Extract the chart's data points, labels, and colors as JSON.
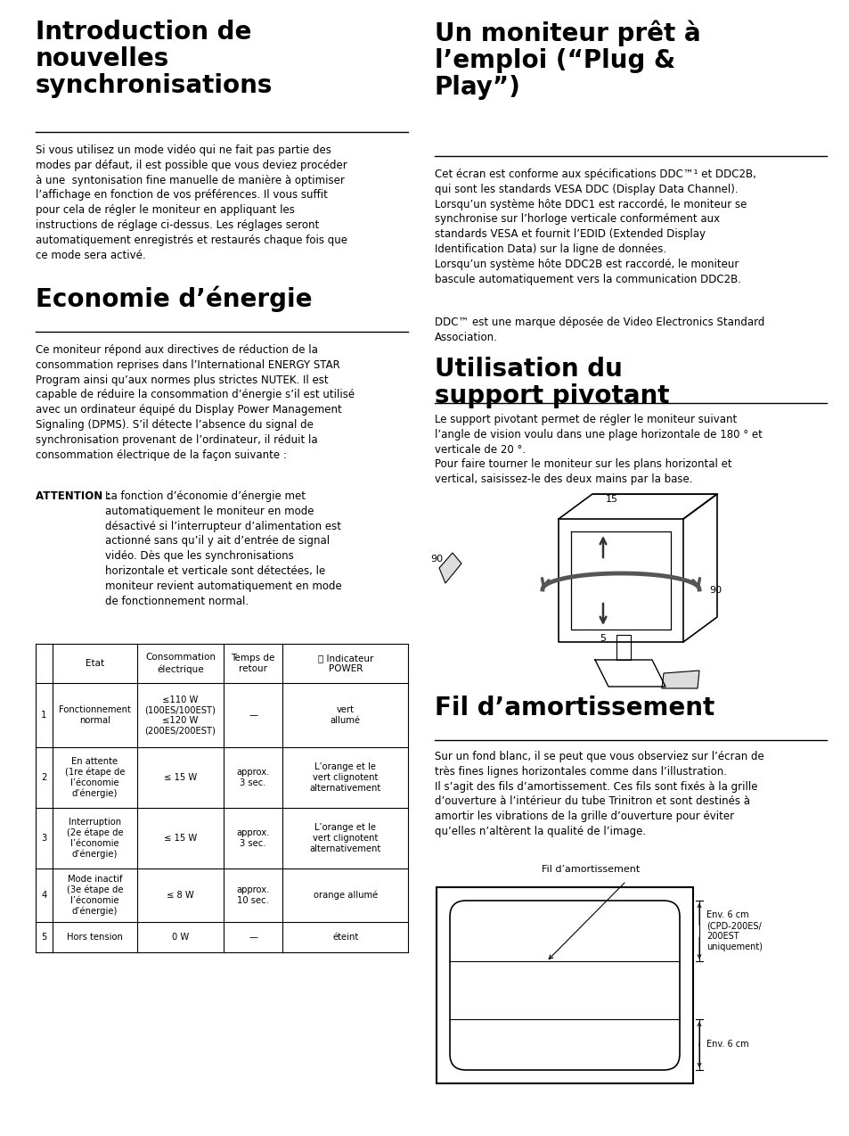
{
  "bg_color": "#ffffff",
  "text_color": "#000000",
  "section1_title": "Introduction de\nnouvelles\nsynchronisations",
  "section1_body": "Si vous utilisez un mode vidéo qui ne fait pas partie des\nmodes par défaut, il est possible que vous deviez procéder\nà une  syntonisation fine manuelle de manière à optimiser\nl’affichage en fonction de vos préférences. Il vous suffit\npour cela de régler le moniteur en appliquant les\ninstructions de réglage ci-dessus. Les réglages seront\nautomatiquement enregistrés et restaurés chaque fois que\nce mode sera activé.",
  "section2_title": "Economie d’énergie",
  "section2_body": "Ce moniteur répond aux directives de réduction de la\nconsommation reprises dans l’International ENERGY STAR\nProgram ainsi qu’aux normes plus strictes NUTEK. Il est\ncapable de réduire la consommation d’énergie s’il est utilisé\navec un ordinateur équipé du Display Power Management\nSignaling (DPMS). S’il détecte l’absence du signal de\nsynchronisation provenant de l’ordinateur, il réduit la\nconsommation électrique de la façon suivante :",
  "section2_attention_label": "ATTENTION : ",
  "section2_attention_body": "La fonction d’économie d’énergie met\nautomatiquement le moniteur en mode\ndésactivé si l’interrupteur d’alimentation est\nactionné sans qu’il y ait d’entrée de signal\nvidéo. Dès que les synchronisations\nhorizontale et verticale sont détectées, le\nmoniteur revient automatiquement en mode\nde fonctionnement normal.",
  "section3_title": "Un moniteur prêt à\nl’emploi (“Plug &\nPlay”)",
  "section3_body": "Cet écran est conforme aux spécifications DDC™¹ et DDC2B,\nqui sont les standards VESA DDC (Display Data Channel).\nLorsqu’un système hôte DDC1 est raccordé, le moniteur se\nsynchronise sur l’horloge verticale conformément aux\nstandards VESA et fournit l’EDID (Extended Display\nIdentification Data) sur la ligne de données.\nLorsqu’un système hôte DDC2B est raccordé, le moniteur\nbascule automatiquement vers la communication DDC2B.",
  "section3_footnote": "DDC™ est une marque déposée de Video Electronics Standard\nAssociation.",
  "section4_title": "Utilisation du\nsupport pivotant",
  "section4_body": "Le support pivotant permet de régler le moniteur suivant\nl’angle de vision voulu dans une plage horizontale de 180 ° et\nverticale de 20 °.\nPour faire tourner le moniteur sur les plans horizontal et\nvertical, saisissez-le des deux mains par la base.",
  "section5_title": "Fil d’amortissement",
  "section5_body": "Sur un fond blanc, il se peut que vous observiez sur l’écran de\ntrès fines lignes horizontales comme dans l’illustration.\nIl s’agit des fils d’amortissement. Ces fils sont fixés à la grille\nd’ouverture à l’intérieur du tube Trinitron et sont destinés à\namortir les vibrations de la grille d’ouverture pour éviter\nqu’elles n’altèrent la qualité de l’image.",
  "table_headers": [
    "Etat",
    "Consommation\nélectrique",
    "Temps de\nretour",
    "⏻ Indicateur\nPOWER"
  ],
  "table_rows": [
    [
      "1",
      "Fonctionnement\nnormal",
      "≤110 W\n(100ES/100EST)\n≤120 W\n(200ES/200EST)",
      "—",
      "vert\nallumé"
    ],
    [
      "2",
      "En attente\n(1re étape de\nl’économie\nd’énergie)",
      "≤ 15 W",
      "approx.\n3 sec.",
      "L’orange et le\nvert clignotent\nalternativement"
    ],
    [
      "3",
      "Interruption\n(2e étape de\nl’économie\nd’énergie)",
      "≤ 15 W",
      "approx.\n3 sec.",
      "L’orange et le\nvert clignotent\nalternativement"
    ],
    [
      "4",
      "Mode inactif\n(3e étape de\nl’économie\nd’énergie)",
      "≤ 8 W",
      "approx.\n10 sec.",
      "orange allumé"
    ],
    [
      "5",
      "Hors tension",
      "0 W",
      "—",
      "éteint"
    ]
  ]
}
